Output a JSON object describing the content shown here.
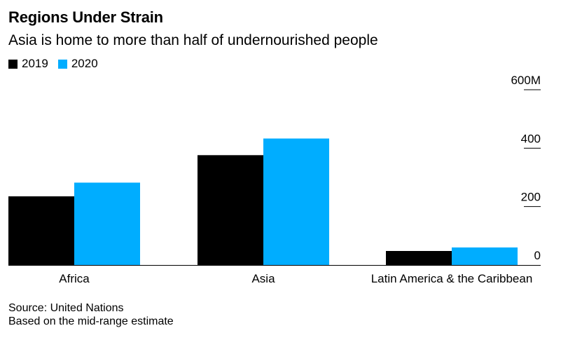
{
  "chart_data": {
    "type": "bar",
    "title": "Regions Under Strain",
    "subtitle": "Asia is home to more than half of undernourished people",
    "categories": [
      "Africa",
      "Asia",
      "Latin America & the Caribbean"
    ],
    "series": [
      {
        "name": "2019",
        "color": "#000000",
        "values": [
          235,
          376,
          48
        ]
      },
      {
        "name": "2020",
        "color": "#00adff",
        "values": [
          282,
          433,
          60
        ]
      }
    ],
    "y_ticks": [
      {
        "value": 0,
        "label": "0"
      },
      {
        "value": 200,
        "label": "200"
      },
      {
        "value": 400,
        "label": "400"
      },
      {
        "value": 600,
        "label": "600M"
      }
    ],
    "ylim": [
      0,
      600
    ],
    "xlabel": "",
    "ylabel": "",
    "legend_position": "top-left",
    "grid": false
  },
  "source": {
    "line1": "Source: United Nations",
    "line2": "Based on the mid-range estimate"
  }
}
